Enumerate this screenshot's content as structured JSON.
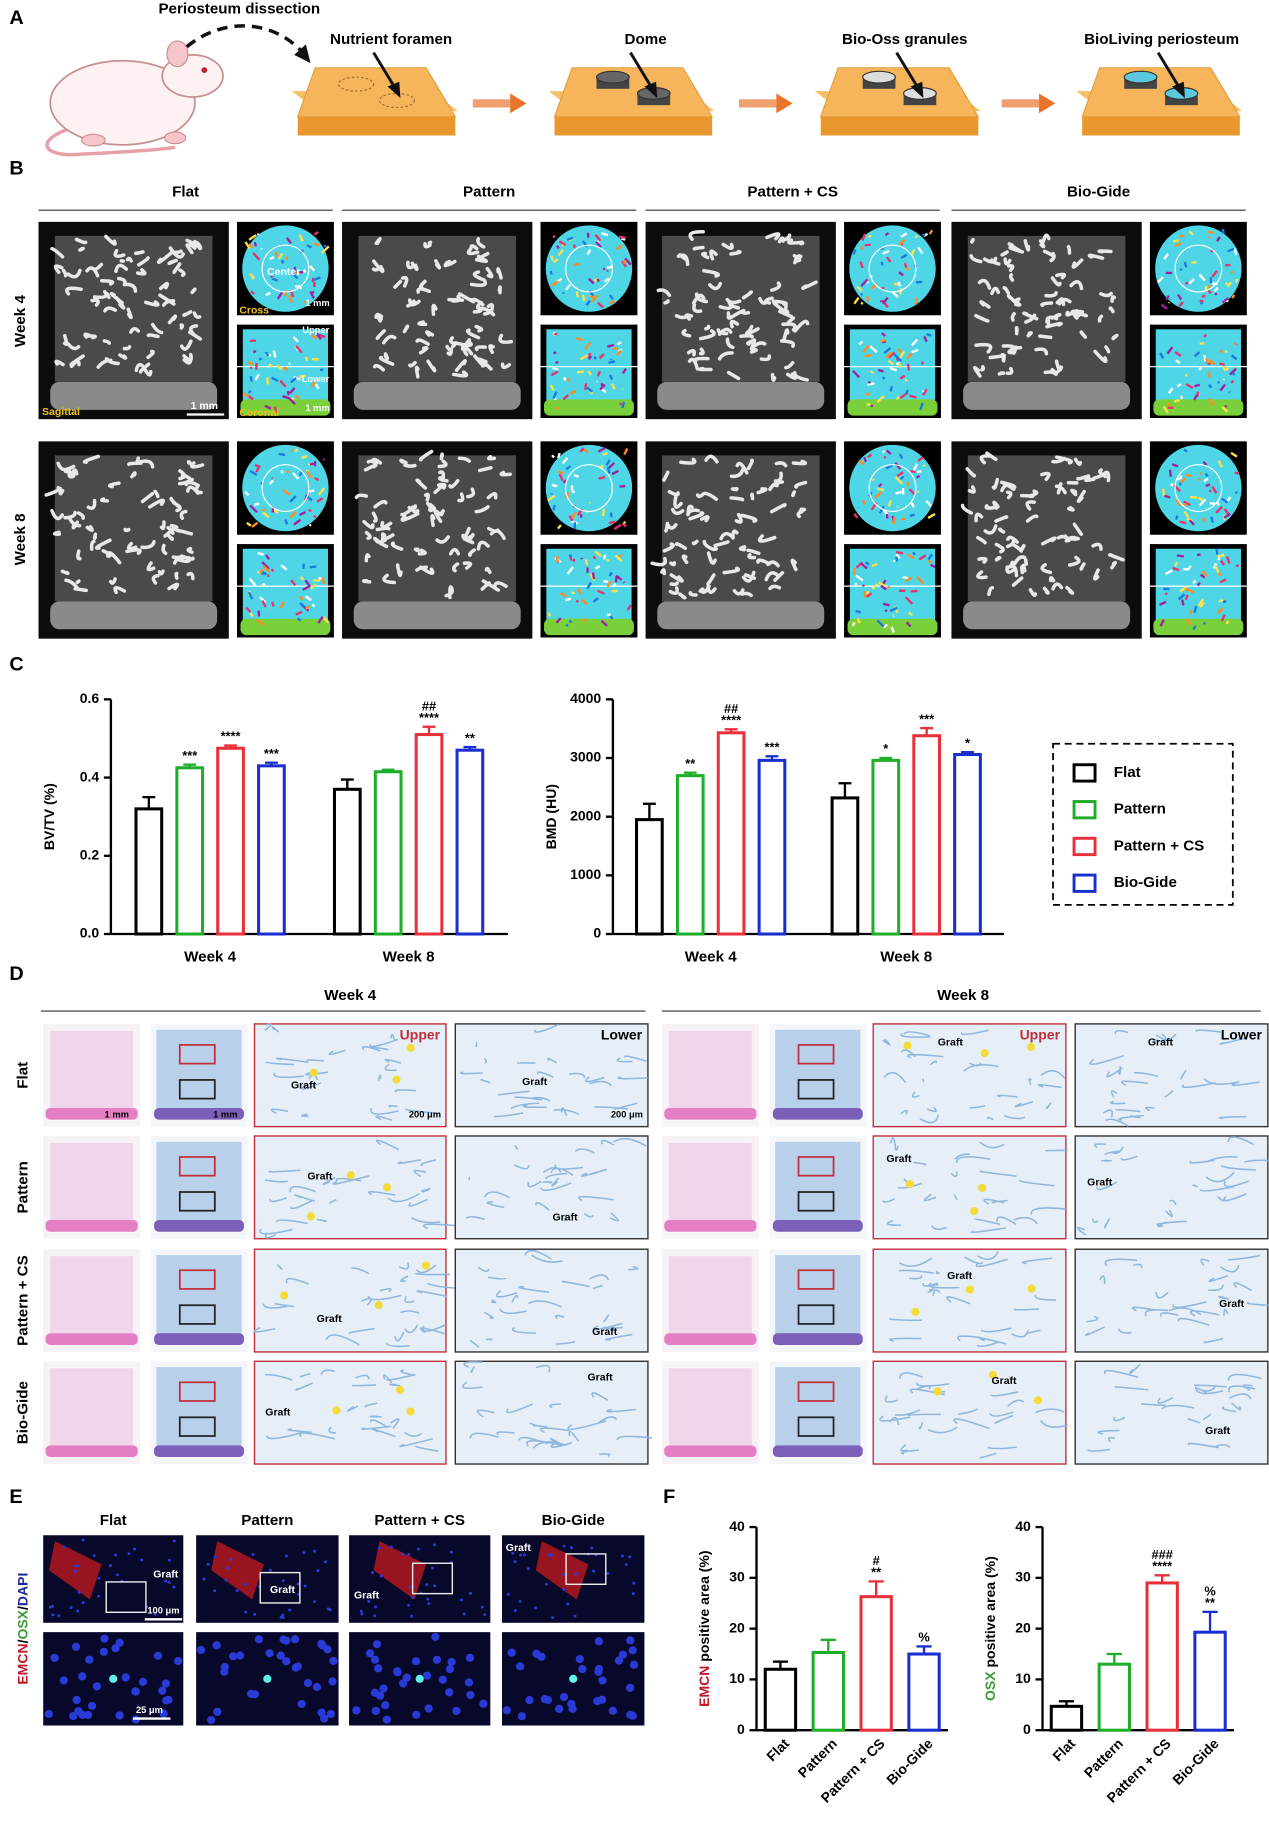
{
  "panel_labels": [
    "A",
    "B",
    "C",
    "D",
    "E",
    "F"
  ],
  "panel_a": {
    "title": "Periosteum dissection",
    "steps": [
      "Nutrient foramen",
      "Dome",
      "Bio-Oss granules",
      "BioLiving periosteum"
    ]
  },
  "panel_b": {
    "groups": [
      "Flat",
      "Pattern",
      "Pattern + CS",
      "Bio-Gide"
    ],
    "rows": [
      "Week 4",
      "Week 8"
    ],
    "labels": {
      "center": "Center",
      "cross": "Cross",
      "upper": "Upper",
      "lower": "Lower",
      "sagittal": "Sagittal",
      "coronal": "Coronal",
      "scale_sagittal": "1 mm",
      "scale_cross": "1 mm",
      "scale_coronal": "1 mm"
    }
  },
  "panel_d": {
    "weeks": [
      "Week 4",
      "Week 8"
    ],
    "rows": [
      "Flat",
      "Pattern",
      "Pattern + CS",
      "Bio-Gide"
    ],
    "upper": "Upper",
    "lower": "Lower",
    "graft": "Graft",
    "scales": [
      "1 mm",
      "1 mm",
      "200 μm",
      "200 μm"
    ]
  },
  "panel_e": {
    "columns": [
      "Flat",
      "Pattern",
      "Pattern + CS",
      "Bio-Gide"
    ],
    "row_label": [
      "EMCN",
      "/",
      "OSX",
      "/",
      "DAPI"
    ],
    "row_label_colors": [
      "#c0192a",
      "#000000",
      "#3a9a3a",
      "#000000",
      "#1e2a9c"
    ],
    "graft": "Graft",
    "scale_top": "100 μm",
    "scale_bottom": "25 μm"
  },
  "chart_data": [
    {
      "type": "bar",
      "ylabel": "BV/TV (%)",
      "categories": [
        "Week 4",
        "Week 8"
      ],
      "ylim": [
        0,
        0.6
      ],
      "yticks": [
        {
          "value": 0,
          "label": "0.0"
        },
        0.2,
        0.4,
        0.6
      ],
      "legend": "right",
      "series": [
        {
          "name": "Flat",
          "color": "#000000",
          "values": [
            0.32,
            0.37
          ],
          "errors": [
            0.03,
            0.025
          ],
          "stars": [
            null,
            null
          ],
          "hashes": [
            null,
            null
          ]
        },
        {
          "name": "Pattern",
          "color": "#1fae2a",
          "values": [
            0.425,
            0.415
          ],
          "errors": [
            0.008,
            0.005
          ],
          "stars": [
            "***",
            null
          ],
          "hashes": [
            null,
            null
          ]
        },
        {
          "name": "Pattern + CS",
          "color": "#e8303a",
          "values": [
            0.475,
            0.51
          ],
          "errors": [
            0.007,
            0.02
          ],
          "stars": [
            "****",
            "****"
          ],
          "hashes": [
            null,
            "##"
          ]
        },
        {
          "name": "Bio-Gide",
          "color": "#1a2fd0",
          "values": [
            0.43,
            0.47
          ],
          "errors": [
            0.008,
            0.008
          ],
          "stars": [
            "***",
            "**"
          ],
          "hashes": [
            null,
            null
          ]
        }
      ]
    },
    {
      "type": "bar",
      "ylabel": "BMD (HU)",
      "categories": [
        "Week 4",
        "Week 8"
      ],
      "ylim": [
        0,
        4000
      ],
      "yticks": [
        0,
        1000,
        2000,
        3000,
        4000
      ],
      "series": [
        {
          "color": "#000000",
          "values": [
            1950,
            2320
          ],
          "errors": [
            270,
            250
          ],
          "stars": [
            null,
            null
          ],
          "hashes": [
            null,
            null
          ]
        },
        {
          "color": "#1fae2a",
          "values": [
            2700,
            2960
          ],
          "errors": [
            50,
            40
          ],
          "stars": [
            "**",
            "*"
          ],
          "hashes": [
            null,
            null
          ]
        },
        {
          "color": "#e8303a",
          "values": [
            3430,
            3380
          ],
          "errors": [
            60,
            130
          ],
          "stars": [
            "****",
            "***"
          ],
          "hashes": [
            "##",
            null
          ]
        },
        {
          "color": "#1a2fd0",
          "values": [
            2960,
            3060
          ],
          "errors": [
            70,
            40
          ],
          "stars": [
            "***",
            "*"
          ],
          "hashes": [
            null,
            null
          ]
        }
      ]
    },
    {
      "type": "bar",
      "ylabel": [
        "EMCN",
        " positive area (%)"
      ],
      "ylabel_colors": [
        "#c0192a",
        "#000000"
      ],
      "categories": [
        "Flat",
        "Pattern",
        "Pattern + CS",
        "Bio-Gide"
      ],
      "values": [
        12,
        15.3,
        26.3,
        15
      ],
      "errors": [
        1.5,
        2.5,
        3,
        1.5
      ],
      "colors": [
        "#000000",
        "#1fae2a",
        "#e8303a",
        "#1a2fd0"
      ],
      "stars": [
        null,
        null,
        "**",
        null
      ],
      "hashes": [
        null,
        null,
        "#",
        null
      ],
      "percents": [
        null,
        null,
        null,
        "%"
      ],
      "ylim": [
        0,
        40
      ],
      "yticks": [
        0,
        10,
        20,
        30,
        40
      ]
    },
    {
      "type": "bar",
      "ylabel": [
        "OSX",
        " positive area (%)"
      ],
      "ylabel_colors": [
        "#3a9a3a",
        "#000000"
      ],
      "categories": [
        "Flat",
        "Pattern",
        "Pattern + CS",
        "Bio-Gide"
      ],
      "values": [
        4.7,
        13,
        29,
        19.3
      ],
      "errors": [
        1,
        2,
        1.5,
        4
      ],
      "colors": [
        "#000000",
        "#1fae2a",
        "#e8303a",
        "#1a2fd0"
      ],
      "stars": [
        null,
        null,
        "****",
        "**"
      ],
      "hashes": [
        null,
        null,
        "###",
        null
      ],
      "percents": [
        null,
        null,
        null,
        "%"
      ],
      "ylim": [
        0,
        40
      ],
      "yticks": [
        0,
        10,
        20,
        30,
        40
      ]
    }
  ]
}
